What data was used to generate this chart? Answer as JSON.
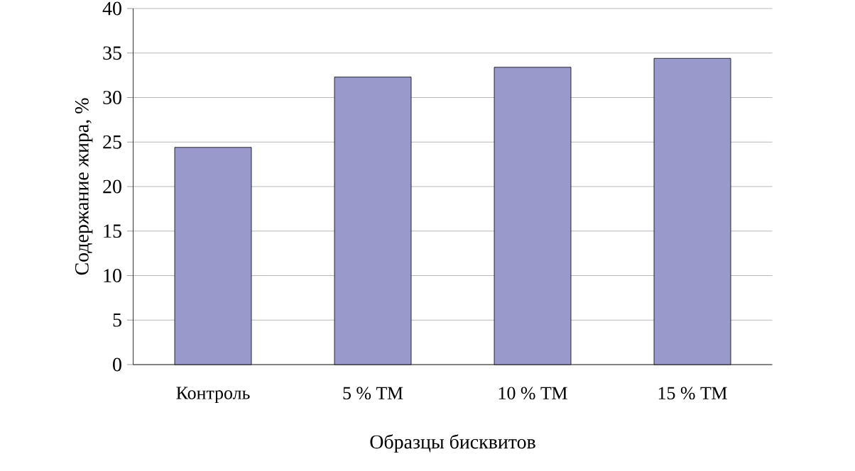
{
  "chart_data": {
    "type": "bar",
    "xlabel": "Образцы бисквитов",
    "ylabel": "Содержание жира, %",
    "categories": [
      "Контроль",
      "5 % ТМ",
      "10 % ТМ",
      "15 % ТМ"
    ],
    "values": [
      24.4,
      32.3,
      33.4,
      34.4
    ],
    "color": "#9999cc",
    "ylim": [
      0,
      40
    ],
    "yticks": [
      0,
      5,
      10,
      15,
      20,
      25,
      30,
      35,
      40
    ],
    "grid": "y"
  }
}
